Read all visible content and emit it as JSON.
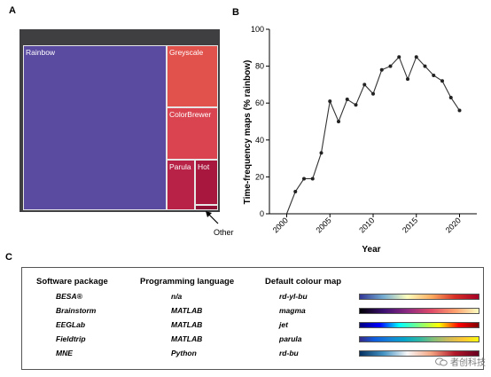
{
  "panels": {
    "a": "A",
    "b": "B",
    "c": "C"
  },
  "treemap": {
    "tiles": [
      {
        "label": "Rainbow",
        "color": "#5a4aa0"
      },
      {
        "label": "Greyscale",
        "color": "#e2524c"
      },
      {
        "label": "ColorBrewer",
        "color": "#d94450"
      },
      {
        "label": "Parula",
        "color": "#b82247"
      },
      {
        "label": "Hot",
        "color": "#a8183e"
      },
      {
        "label": "",
        "color": "#8f1236"
      }
    ],
    "other_label": "Other"
  },
  "chart_data": {
    "type": "line",
    "title": "",
    "xlabel": "Year",
    "ylabel": "Time-frequency maps (% rainbow)",
    "xlim": [
      1998,
      2022
    ],
    "ylim": [
      0,
      100
    ],
    "xticks": [
      2000,
      2005,
      2010,
      2015,
      2020
    ],
    "yticks": [
      0,
      20,
      40,
      60,
      80,
      100
    ],
    "x": [
      2000,
      2001,
      2002,
      2003,
      2004,
      2005,
      2006,
      2007,
      2008,
      2009,
      2010,
      2011,
      2012,
      2013,
      2014,
      2015,
      2016,
      2017,
      2018,
      2019,
      2020
    ],
    "y": [
      0,
      12,
      19,
      19,
      33,
      61,
      50,
      62,
      59,
      70,
      65,
      78,
      80,
      85,
      73,
      85,
      80,
      75,
      72,
      63,
      56
    ],
    "grid": false
  },
  "table": {
    "headers": [
      "Software package",
      "Programming language",
      "Default colour map"
    ],
    "rows": [
      {
        "package": "BESA®",
        "language": "n/a",
        "cmap": "rd-yl-bu"
      },
      {
        "package": "Brainstorm",
        "language": "MATLAB",
        "cmap": "magma"
      },
      {
        "package": "EEGLab",
        "language": "MATLAB",
        "cmap": "jet"
      },
      {
        "package": "Fieldtrip",
        "language": "MATLAB",
        "cmap": "parula"
      },
      {
        "package": "MNE",
        "language": "Python",
        "cmap": "rd-bu"
      }
    ]
  },
  "watermark": "者创科技"
}
